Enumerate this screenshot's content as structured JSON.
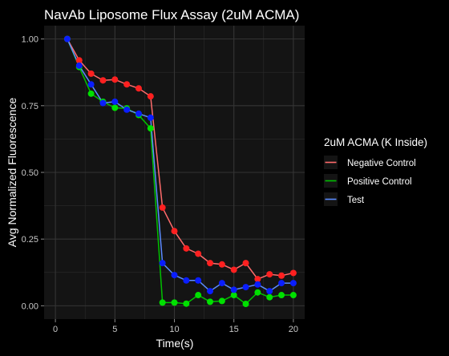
{
  "chart_data": {
    "type": "line",
    "title": "NavAb Liposome Flux Assay (2uM ACMA)",
    "xlabel": "Time(s)",
    "ylabel": "Avg Normalized Fluorescence",
    "xlim": [
      -0.95,
      20.95
    ],
    "ylim": [
      -0.05,
      1.05
    ],
    "x_ticks": [
      0,
      5,
      10,
      15,
      20
    ],
    "x_tick_labels": [
      "0",
      "5",
      "10",
      "15",
      "20"
    ],
    "y_ticks": [
      0,
      0.25,
      0.5,
      0.75,
      1.0
    ],
    "y_tick_labels": [
      "0.00",
      "0.25",
      "0.50",
      "0.75",
      "1.00"
    ],
    "grid": true,
    "legend": {
      "title": "2uM ACMA (K Inside)",
      "position": "right"
    },
    "x": [
      1,
      2,
      3,
      4,
      5,
      6,
      7,
      8,
      9,
      10,
      11,
      12,
      13,
      14,
      15,
      16,
      17,
      18,
      19,
      20
    ],
    "series": [
      {
        "name": "Negative Control",
        "color": "#ff6b6b",
        "point_color": "#ff2020",
        "values": [
          1.0,
          0.92,
          0.87,
          0.845,
          0.848,
          0.83,
          0.815,
          0.785,
          0.368,
          0.28,
          0.215,
          0.195,
          0.16,
          0.155,
          0.135,
          0.16,
          0.1,
          0.118,
          0.113,
          0.123
        ]
      },
      {
        "name": "Positive Control",
        "color": "#00c000",
        "point_color": "#00e000",
        "values": [
          1.0,
          0.895,
          0.795,
          0.765,
          0.742,
          0.74,
          0.715,
          0.665,
          0.012,
          0.012,
          0.008,
          0.04,
          0.015,
          0.018,
          0.04,
          0.007,
          0.05,
          0.032,
          0.04,
          0.04
        ]
      },
      {
        "name": "Test",
        "color": "#5b8cff",
        "point_color": "#0a1eff",
        "values": [
          1.0,
          0.9,
          0.83,
          0.76,
          0.765,
          0.735,
          0.72,
          0.705,
          0.16,
          0.115,
          0.095,
          0.095,
          0.055,
          0.085,
          0.06,
          0.07,
          0.08,
          0.055,
          0.085,
          0.085
        ]
      }
    ]
  }
}
